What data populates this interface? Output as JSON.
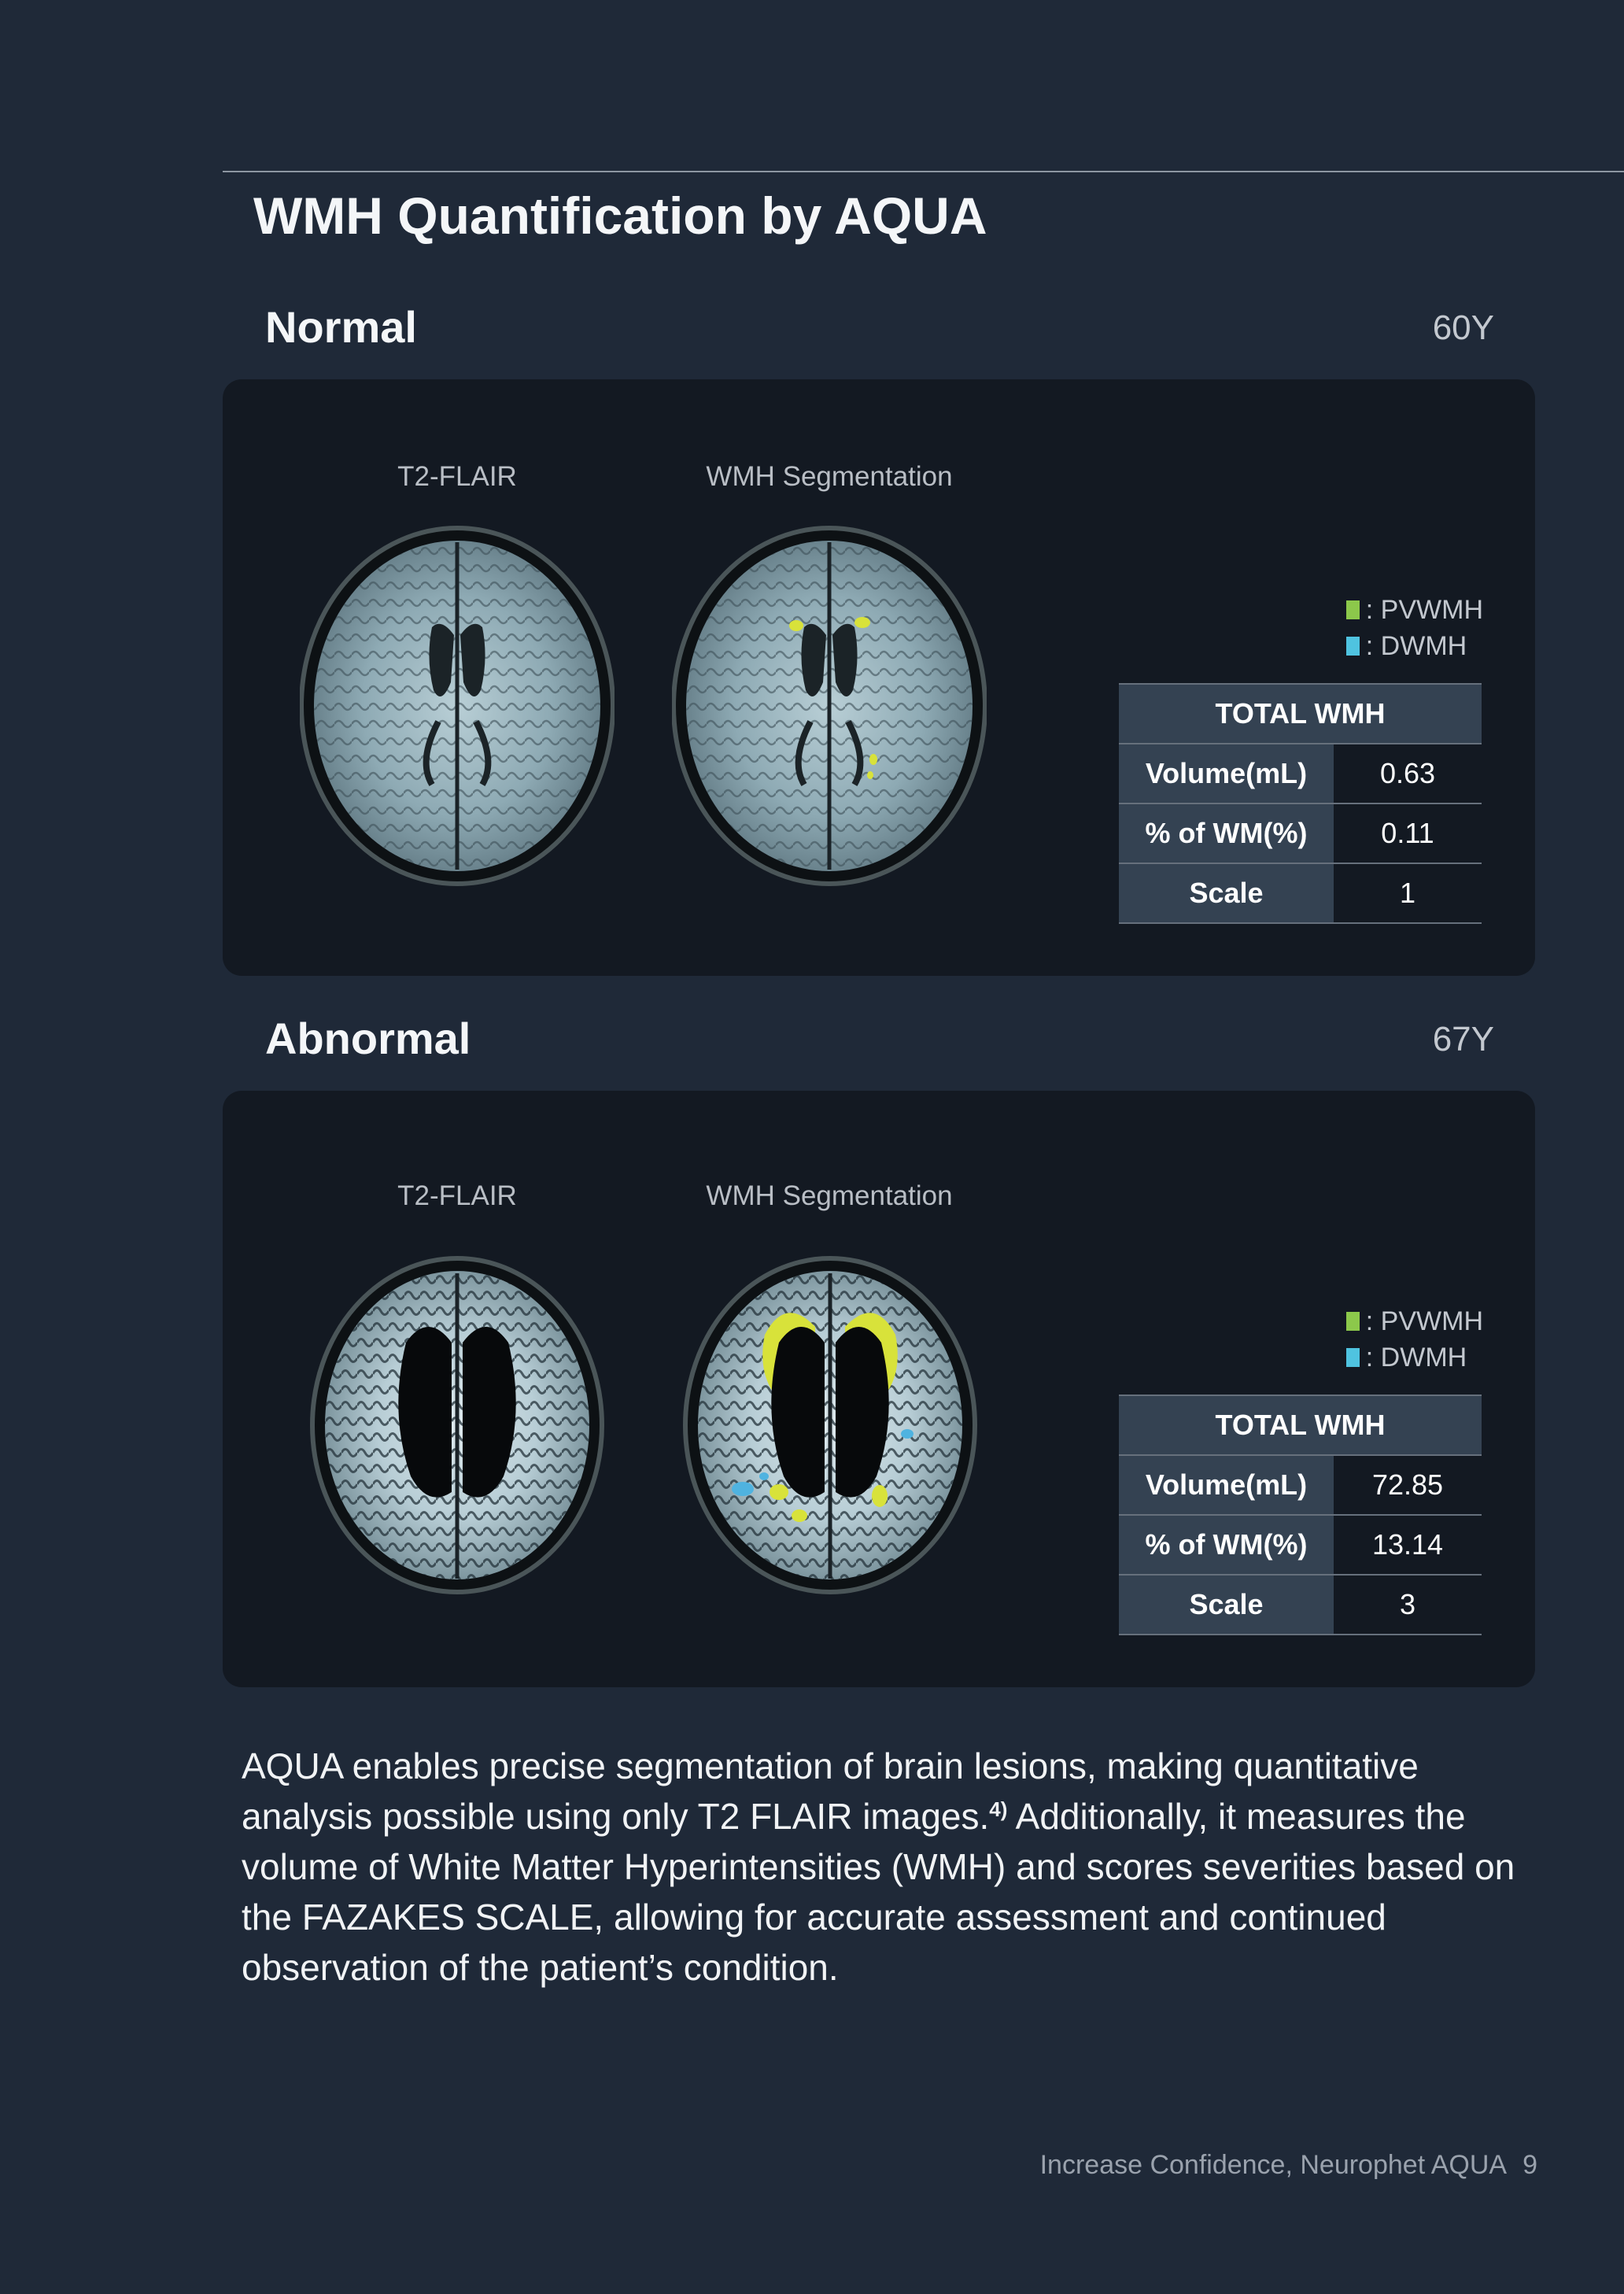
{
  "header": {
    "title": "WMH Quantification by AQUA"
  },
  "sections": [
    {
      "label": "Normal",
      "age": "60Y",
      "image_labels": [
        "T2-FLAIR",
        "WMH Segmentation"
      ],
      "legend": [
        {
          "label": ": PVWMH",
          "color": "#8cc84b"
        },
        {
          "label": ": DWMH",
          "color": "#4fc3e0"
        }
      ],
      "table": {
        "header": "TOTAL WMH",
        "rows": [
          {
            "key": "Volume(mL)",
            "value": "0.63"
          },
          {
            "key": "% of WM(%)",
            "value": "0.11"
          },
          {
            "key": "Scale",
            "value": "1"
          }
        ]
      }
    },
    {
      "label": "Abnormal",
      "age": "67Y",
      "image_labels": [
        "T2-FLAIR",
        "WMH Segmentation"
      ],
      "legend": [
        {
          "label": ": PVWMH",
          "color": "#8cc84b"
        },
        {
          "label": ": DWMH",
          "color": "#4fc3e0"
        }
      ],
      "table": {
        "header": "TOTAL WMH",
        "rows": [
          {
            "key": "Volume(mL)",
            "value": "72.85"
          },
          {
            "key": "% of WM(%)",
            "value": "13.14"
          },
          {
            "key": "Scale",
            "value": "3"
          }
        ]
      }
    }
  ],
  "paragraph": {
    "part1": "AQUA enables precise segmentation of brain lesions, making quantitative analysis possible using only T2 FLAIR images.",
    "ref": "4)",
    "part2": " Additionally, it measures the volume of White Matter Hyperintensities (WMH) and scores severities based on the FAZAKES SCALE, allowing for accurate assessment and continued observation of the patient’s condition."
  },
  "footer": {
    "text": "Increase Confidence, Neurophet AQUA",
    "page": "9"
  },
  "colors": {
    "background": "#1f2938",
    "panel": "#131922",
    "table_header": "#344252",
    "lesion_pv": "#d8e23a",
    "lesion_d": "#4fb3e0"
  }
}
